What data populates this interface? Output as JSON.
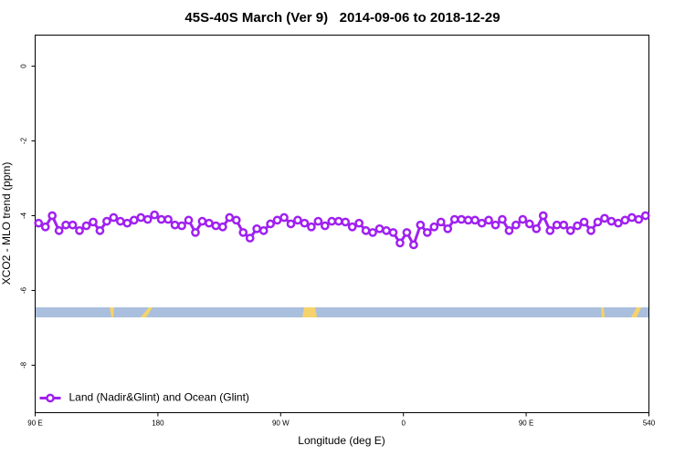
{
  "chart_data": {
    "type": "line",
    "title": "45S-40S March (Ver 9)   2014-09-06 to 2018-12-29",
    "xlabel": "Longitude (deg E)",
    "ylabel": "XCO2 - MLO trend (ppm)",
    "xlim": [
      90,
      540
    ],
    "ylim": [
      -9.27,
      0.83
    ],
    "xticks": [
      {
        "value": 90,
        "label": "90 E"
      },
      180,
      {
        "value": 270,
        "label": "90 W"
      },
      {
        "value": 360,
        "label": "0"
      },
      {
        "value": 450,
        "label": "90 E"
      },
      540
    ],
    "yticks": [
      0,
      -2,
      -4,
      -6,
      -8
    ],
    "legend": "lower left",
    "x": [
      92.5,
      97.5,
      102.5,
      107.5,
      112.5,
      117.5,
      122.5,
      127.5,
      132.5,
      137.5,
      142.5,
      147.5,
      152.5,
      157.5,
      162.5,
      167.5,
      172.5,
      177.5,
      182.5,
      187.5,
      192.5,
      197.5,
      202.5,
      207.5,
      212.5,
      217.5,
      222.5,
      227.5,
      232.5,
      237.5,
      242.5,
      247.5,
      252.5,
      257.5,
      262.5,
      267.5,
      272.5,
      277.5,
      282.5,
      287.5,
      292.5,
      297.5,
      302.5,
      307.5,
      312.5,
      317.5,
      322.5,
      327.5,
      332.5,
      337.5,
      342.5,
      347.5,
      352.5,
      357.5,
      362.5,
      367.5,
      372.5,
      377.5,
      382.5,
      387.5,
      392.5,
      397.5,
      402.5,
      407.5,
      412.5,
      417.5,
      422.5,
      427.5,
      432.5,
      437.5,
      442.5,
      447.5,
      452.5,
      457.5,
      462.5,
      467.5,
      472.5,
      477.5,
      482.5,
      487.5,
      492.5,
      497.5,
      502.5,
      507.5,
      512.5,
      517.5,
      522.5,
      527.5,
      532.5,
      537.5
    ],
    "series": [
      {
        "name": "Land (Nadir&Glint) and Ocean (Glint)",
        "color": "#a020f0",
        "values": [
          -4.2,
          -4.3,
          -4.0,
          -4.4,
          -4.25,
          -4.25,
          -4.4,
          -4.27,
          -4.17,
          -4.4,
          -4.15,
          -4.05,
          -4.15,
          -4.2,
          -4.12,
          -4.05,
          -4.1,
          -3.98,
          -4.1,
          -4.1,
          -4.25,
          -4.27,
          -4.12,
          -4.45,
          -4.15,
          -4.2,
          -4.27,
          -4.3,
          -4.05,
          -4.12,
          -4.45,
          -4.6,
          -4.35,
          -4.4,
          -4.22,
          -4.12,
          -4.05,
          -4.22,
          -4.12,
          -4.2,
          -4.3,
          -4.15,
          -4.27,
          -4.15,
          -4.15,
          -4.17,
          -4.3,
          -4.2,
          -4.4,
          -4.45,
          -4.35,
          -4.4,
          -4.45,
          -4.73,
          -4.45,
          -4.78,
          -4.25,
          -4.45,
          -4.3,
          -4.17,
          -4.35,
          -4.1,
          -4.1,
          -4.12,
          -4.12,
          -4.2,
          -4.12,
          -4.25,
          -4.1,
          -4.4,
          -4.25,
          -4.1,
          -4.22,
          -4.35,
          -4.0,
          -4.4,
          -4.25,
          -4.25,
          -4.4,
          -4.27,
          -4.17,
          -4.4,
          -4.17,
          -4.07,
          -4.15,
          -4.2,
          -4.12,
          -4.05,
          -4.1,
          -4.0
        ]
      }
    ]
  }
}
